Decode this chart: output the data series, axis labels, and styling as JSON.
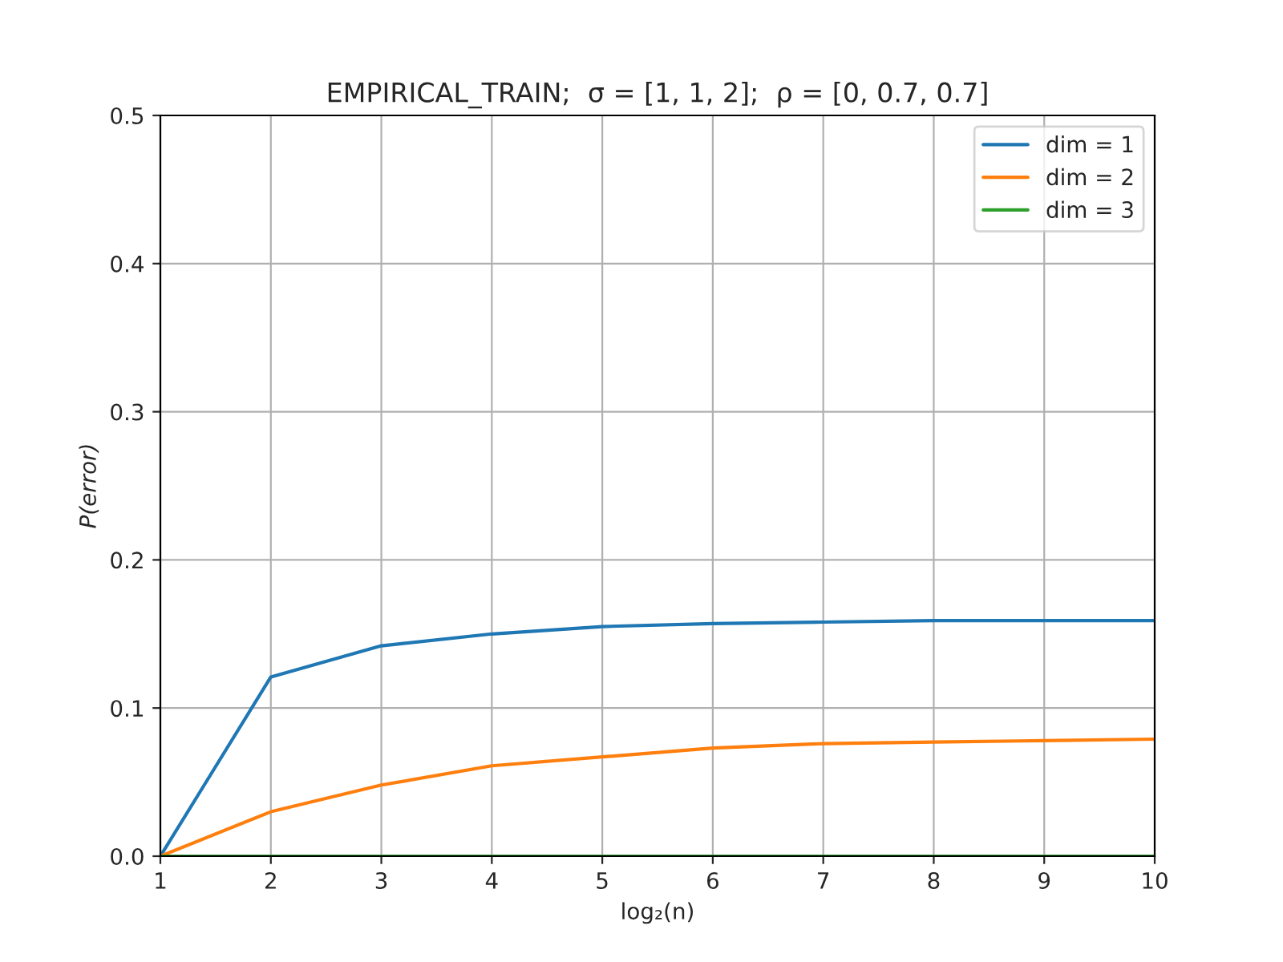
{
  "chart_data": {
    "type": "line",
    "title": "EMPIRICAL_TRAIN;  σ = [1, 1, 2];  ρ = [0, 0.7, 0.7]",
    "xlabel": "log₂(n)",
    "ylabel": "P(error)",
    "x": [
      1,
      2,
      3,
      4,
      5,
      6,
      7,
      8,
      9,
      10
    ],
    "series": [
      {
        "name": "dim = 1",
        "color": "#1f77b4",
        "values": [
          0,
          0.121,
          0.142,
          0.15,
          0.155,
          0.157,
          0.158,
          0.159,
          0.159,
          0.159
        ]
      },
      {
        "name": "dim = 2",
        "color": "#ff7f0e",
        "values": [
          0,
          0.03,
          0.048,
          0.061,
          0.067,
          0.073,
          0.076,
          0.077,
          0.078,
          0.079
        ]
      },
      {
        "name": "dim = 3",
        "color": "#2ca02c",
        "values": [
          0,
          0,
          0,
          0,
          0,
          0,
          0,
          0,
          0,
          0
        ]
      }
    ],
    "xlim": [
      1,
      10
    ],
    "xticks": [
      1,
      2,
      3,
      4,
      5,
      6,
      7,
      8,
      9,
      10
    ],
    "ylim": [
      0,
      0.5
    ],
    "yticks": [
      {
        "value": 0,
        "label": "0.0"
      },
      0.1,
      0.2,
      0.3,
      0.4,
      0.5
    ],
    "grid": true,
    "legend": "top right",
    "line_style": "solid",
    "marker": "none"
  }
}
